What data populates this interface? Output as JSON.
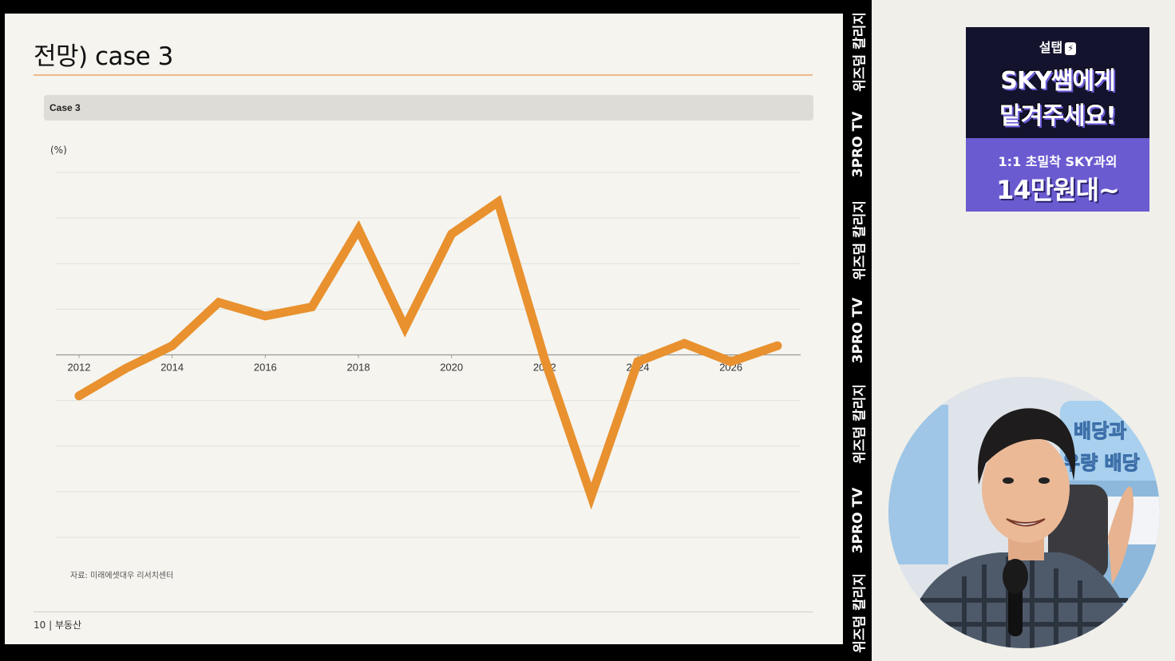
{
  "slide": {
    "title": "전망) case 3",
    "case_label": "Case 3",
    "unit_label": "(%)",
    "source": "자료: 미래에셋대우 리서치센터",
    "footer": "10 | 부동산"
  },
  "chart_data": {
    "type": "line",
    "title": "Case 3",
    "ylabel": "(%)",
    "xlabel": "",
    "x": [
      2012,
      2013,
      2014,
      2015,
      2016,
      2017,
      2018,
      2019,
      2020,
      2021,
      2022,
      2023,
      2024,
      2025,
      2026,
      2027
    ],
    "x_tick_labels": [
      "2012",
      "2014",
      "2016",
      "2018",
      "2020",
      "2022",
      "2024",
      "2026"
    ],
    "series": [
      {
        "values": [
          -0.9,
          -0.3,
          0.2,
          1.15,
          0.85,
          1.05,
          2.75,
          0.6,
          2.65,
          3.35,
          -0.1,
          -3.1,
          -0.15,
          0.25,
          -0.15,
          0.2
        ],
        "color": "#e8912e"
      }
    ],
    "ylim": [
      -4,
      4
    ],
    "grid": true,
    "legend": "none"
  },
  "vertical_strip": {
    "labels": [
      "위즈덤 칼리지",
      "3PRO TV",
      "위즈덤 칼리지",
      "3PRO TV",
      "위즈덤 칼리지",
      "3PRO TV",
      "위즈덤 칼리지"
    ]
  },
  "ad": {
    "brand": "설탭",
    "line1": "SKY쌤에게",
    "line2": "맡겨주세요!",
    "sub": "1:1 초밀착 SKY과외",
    "price": "14만원대~",
    "colors": {
      "dark": "#13132d",
      "purple": "#6a5bd0"
    }
  },
  "webcam": {
    "sign_line1": "배당과",
    "sign_line2": "우량 배당"
  }
}
